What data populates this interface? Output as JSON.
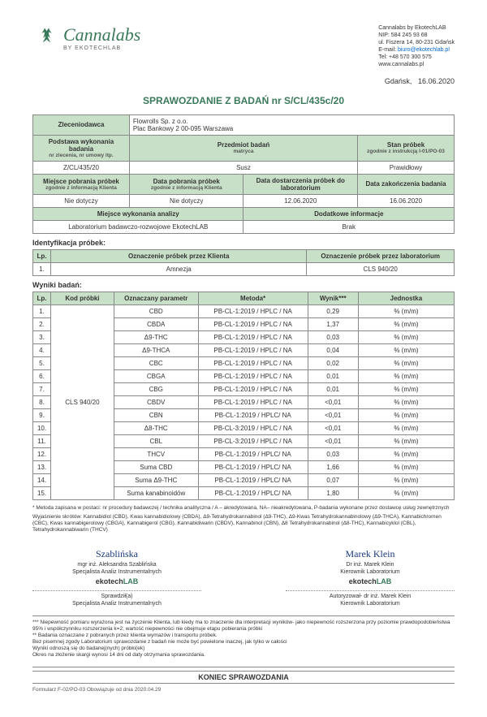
{
  "company": {
    "name": "Cannalabs by EkotechLAB",
    "nip": "NIP: 584 245 93 68",
    "addr1": "ul. Fiszera 14, 80-231 Gdańsk",
    "email_label": "E-mail:",
    "email": "biuro@ekotechlab.pl",
    "tel": "Tel: +48 570 300 575",
    "web": "www.cannalabs.pl"
  },
  "logo": {
    "main": "Cannalabs",
    "sub": "BY EKOTECHLAB"
  },
  "dateline": {
    "city": "Gdańsk,",
    "date": "16.06.2020"
  },
  "title": "SPRAWOZDANIE Z BADAŃ nr  S/CL/435c/20",
  "t1": {
    "h_client": "Zleceniodawca",
    "client1": "Flowrolls Sp. z o.o.",
    "client2": "Plac Bankowy 2 00-095 Warszawa",
    "h_basis": "Podstawa wykonania badania",
    "basis_sub": "nr zlecenia, nr umowy itp.",
    "h_subject": "Przedmiot badań",
    "subject_sub": "matryca",
    "h_state": "Stan próbek",
    "state_sub": "zgodnie z instrukcją I-01/PO-03",
    "basis_v": "Z/CL/435/20",
    "subject_v": "Susz",
    "state_v": "Prawidłowy",
    "h_place": "Miejsce pobrania próbek",
    "place_sub": "zgodnie z informacją Klienta",
    "h_sampdate": "Data pobrania próbek",
    "sampdate_sub": "zgodnie z informacją Klienta",
    "h_deliv": "Data dostarczenia próbek do laboratorium",
    "h_enddate": "Data zakończenia badania",
    "place_v": "Nie dotyczy",
    "sampdate_v": "Nie dotyczy",
    "deliv_v": "12.06.2020",
    "enddate_v": "16.06.2020",
    "h_labplace": "Miejsce wykonania analizy",
    "h_addinfo": "Dodatkowe informacje",
    "labplace_v": "Laboratorium badawczo-rozwojowe EkotechLAB",
    "addinfo_v": "Brak"
  },
  "ident": {
    "header": "Identyfikacja próbek:",
    "lp": "Lp.",
    "h_client": "Oznaczenie  próbek przez Klienta",
    "h_lab": "Oznaczenie próbek przez laboratorium",
    "r1n": "1.",
    "r1c": "Amnezja",
    "r1l": "CLS 940/20"
  },
  "results": {
    "header": "Wyniki badań:",
    "lp": "Lp.",
    "h_code": "Kod próbki",
    "h_param": "Oznaczany parametr",
    "h_method": "Metoda*",
    "h_result": "Wynik***",
    "h_unit": "Jednostka",
    "code": "CLS 940/20",
    "rows": [
      {
        "n": "1.",
        "p": "CBD",
        "m": "PB-CL-1:2019 / HPLC / NA",
        "r": "0,29",
        "u": "% (m/m)"
      },
      {
        "n": "2.",
        "p": "CBDA",
        "m": "PB-CL-1:2019 / HPLC / NA",
        "r": "1,37",
        "u": "% (m/m)"
      },
      {
        "n": "3.",
        "p": "Δ9-THC",
        "m": "PB-CL-1:2019 / HPLC / NA",
        "r": "0,03",
        "u": "% (m/m)"
      },
      {
        "n": "4.",
        "p": "Δ9-THCA",
        "m": "PB-CL-1:2019 / HPLC / NA",
        "r": "0,04",
        "u": "% (m/m)"
      },
      {
        "n": "5.",
        "p": "CBC",
        "m": "PB-CL-1:2019 / HPLC / NA",
        "r": "0,02",
        "u": "% (m/m)"
      },
      {
        "n": "6.",
        "p": "CBGA",
        "m": "PB-CL-1:2019 / HPLC / NA",
        "r": "0,01",
        "u": "% (m/m)"
      },
      {
        "n": "7.",
        "p": "CBG",
        "m": "PB-CL-1:2019 / HPLC / NA",
        "r": "0,01",
        "u": "% (m/m)"
      },
      {
        "n": "8.",
        "p": "CBDV",
        "m": "PB-CL-1:2019 / HPLC / NA",
        "r": "<0,01",
        "u": "% (m/m)"
      },
      {
        "n": "9.",
        "p": "CBN",
        "m": "PB-CL-1:2019 / HPLC/ NA",
        "r": "<0,01",
        "u": "% (m/m)"
      },
      {
        "n": "10.",
        "p": "Δ8-THC",
        "m": "PB-CL-3:2019 / HPLC / NA",
        "r": "<0,01",
        "u": "% (m/m)"
      },
      {
        "n": "11.",
        "p": "CBL",
        "m": "PB-CL-3:2019 / HPLC / NA",
        "r": "<0,01",
        "u": "% (m/m)"
      },
      {
        "n": "12.",
        "p": "THCV",
        "m": "PB-CL-1:2019 / HPLC/ NA",
        "r": "0,03",
        "u": "% (m/m)"
      },
      {
        "n": "13.",
        "p": "Suma CBD",
        "m": "PB-CL-1:2019 / HPLC/ NA",
        "r": "1,66",
        "u": "% (m/m)"
      },
      {
        "n": "14.",
        "p": "Suma  Δ9-THC",
        "m": "PB-CL-1:2019 / HPLC/ NA",
        "r": "0,07",
        "u": "% (m/m)"
      },
      {
        "n": "15.",
        "p": "Suma kanabinoidów",
        "m": "PB-CL-1:2019 / HPLC/ NA",
        "r": "1,80",
        "u": "% (m/m)"
      }
    ]
  },
  "foot1": "Metoda zapisana w postaci: nr procedury badawczej / technika analityczna / A – akredytowana, NA– nieakredytowana, P-badania wykonane przez dostawcę usług zewnętrznych",
  "foot2": "Wyjaśnienie skrótów: Kannabidiol (CBD), Kwas kannabidiolowy (CBDA), Δ9-Tetrahydrokannabinol (Δ9-THC),  Δ9-Kwas Tetrahydrokannabinolowy (Δ9-THCA), Kannabichromen (CBC), Kwas kannabigerolowy (CBGA), Kannabigerol (CBG), Kannabidiwarin (CBDV), Kannabinol (CBN), Δ8 Tetrahydrokannabinol (Δ8-THC), Kannabicyklol (CBL), Tetrahydrokannabiwarin (THCV)",
  "sigL": {
    "name": "Szablińska",
    "t1": "mgr inż. Aleksandra Szablińska",
    "t2": "Specjalista Analiz Instrumentalnych",
    "role1": "Sprawdził(a)",
    "role2": "Specjalista Analiz Instrumentalnych"
  },
  "sigR": {
    "name": "Marek Klein",
    "t1": "Dr inż. Marek Klein",
    "t2": "Kierownik Laboratorium",
    "role1": "Autoryzował- dr inż. Marek Klein",
    "role2": "Kierownik Laboratorium"
  },
  "disclaimer": {
    "l1": "*** Niepewność pomiaru wyrażona jest na życzenie Klienta,  lub kiedy ma to znaczenie dla interpretacji wyników- jako niepewność rozszerzona przy poziomie prawdopodobieństwa 95%  i współczynniku rozszerzenia k=2; wartość niepewności nie obejmuje etapu pobierania próbki",
    "l2": "** Badania oznaczane z pobranych przez klienta wymazów i transportu próbek.",
    "l3": "Bez pisemnej zgody Laboratorium sprawozdanie z badań nie może być powielone inaczej, jak tylko w całości",
    "l4": "Wyniki odnoszą się do badanej(nych) próbki(ek)",
    "l5": "Okres na złożenie skargi wynosi 14 dni od daty otrzymania sprawozdania."
  },
  "end": "KONIEC SPRAWOZDANIA",
  "formid": "Formularz F-02/PO-03 Obowiązuje od dnia 2020.04.29",
  "colors": {
    "green": "#c8e0c8",
    "brand": "#3a7a5a"
  }
}
